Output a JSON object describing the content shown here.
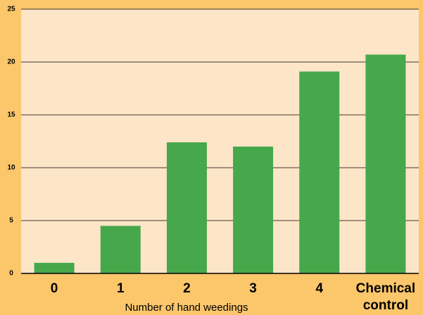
{
  "chart_data": {
    "type": "bar",
    "categories": [
      "0",
      "1",
      "2",
      "3",
      "4",
      "Chemical control"
    ],
    "values": [
      1.0,
      4.5,
      12.4,
      12.0,
      19.1,
      20.7
    ],
    "color": "#46a84a",
    "x_label": "Number of hand weedings",
    "ylim": [
      0,
      25
    ],
    "yticks": [
      0,
      5,
      10,
      15,
      20,
      25
    ],
    "grid": true
  }
}
